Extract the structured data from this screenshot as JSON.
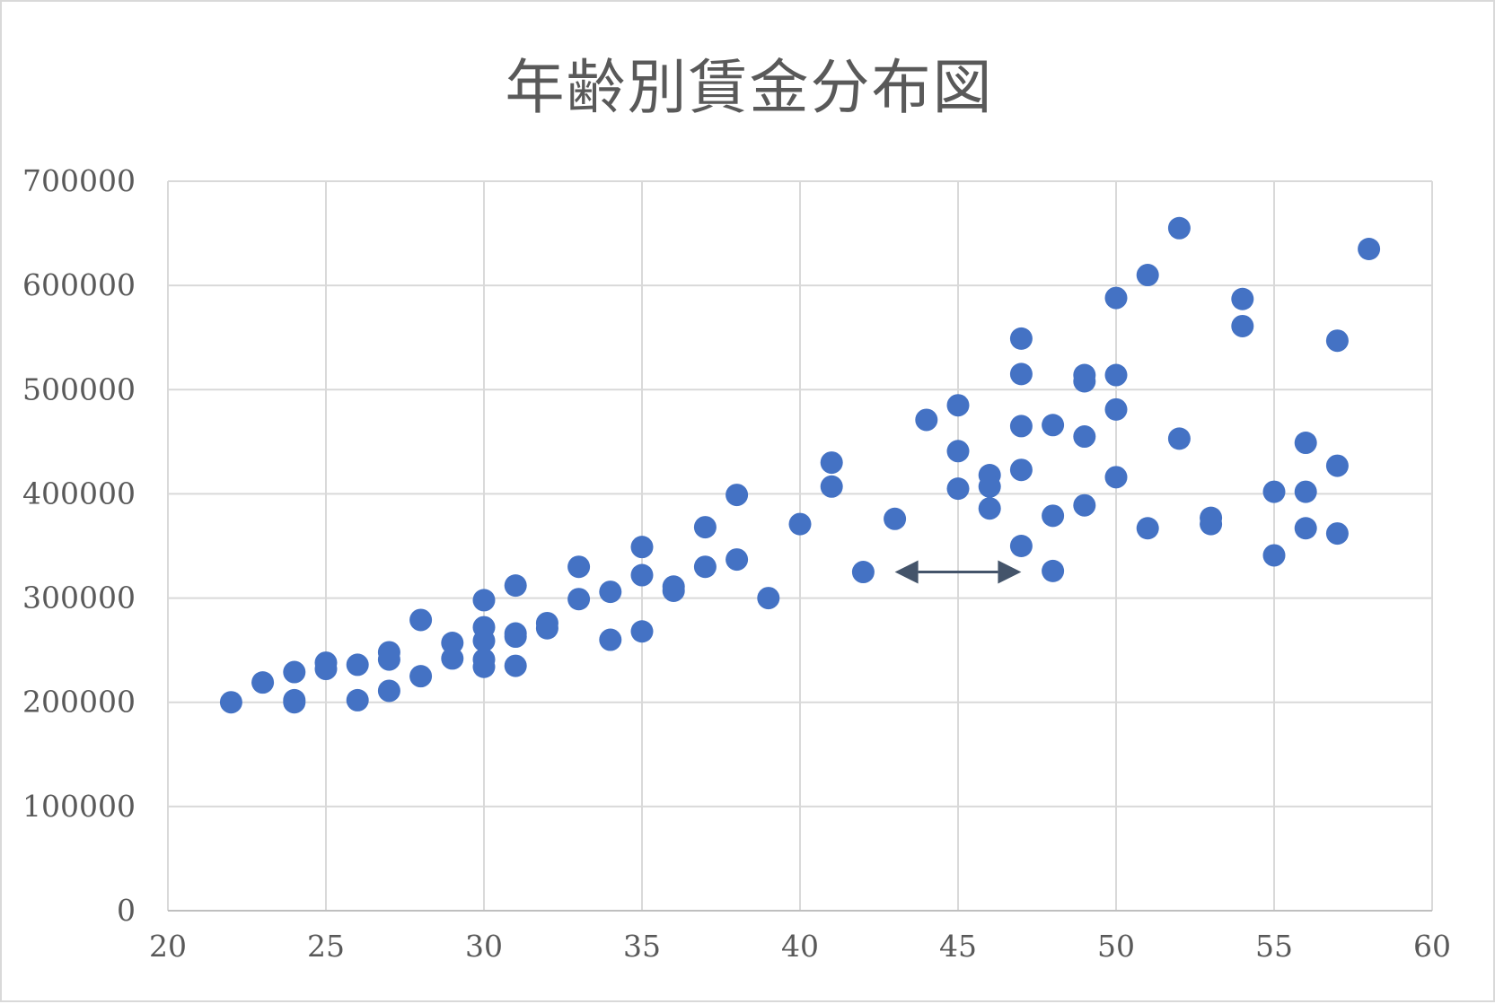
{
  "chart_data": {
    "type": "scatter",
    "title": "年齢別賃金分布図",
    "xlabel": "",
    "ylabel": "",
    "xlim": [
      20,
      60
    ],
    "ylim": [
      0,
      700000
    ],
    "x_ticks": [
      "20",
      "25",
      "30",
      "35",
      "40",
      "45",
      "50",
      "55",
      "60"
    ],
    "y_ticks": [
      "0",
      "100000",
      "200000",
      "300000",
      "400000",
      "500000",
      "600000",
      "700000"
    ],
    "grid": true,
    "legend": "none",
    "marker_color": "#4472c4",
    "series": [
      {
        "points": [
          [
            22,
            200000
          ],
          [
            23,
            219000
          ],
          [
            24,
            229000
          ],
          [
            24,
            202000
          ],
          [
            24,
            200000
          ],
          [
            25,
            238000
          ],
          [
            25,
            232000
          ],
          [
            26,
            236000
          ],
          [
            26,
            202000
          ],
          [
            27,
            248000
          ],
          [
            27,
            241000
          ],
          [
            27,
            211000
          ],
          [
            28,
            279000
          ],
          [
            28,
            225000
          ],
          [
            29,
            257000
          ],
          [
            29,
            242000
          ],
          [
            30,
            298000
          ],
          [
            30,
            272000
          ],
          [
            30,
            259000
          ],
          [
            30,
            241000
          ],
          [
            30,
            234000
          ],
          [
            31,
            312000
          ],
          [
            31,
            266000
          ],
          [
            31,
            263000
          ],
          [
            31,
            235000
          ],
          [
            32,
            276000
          ],
          [
            32,
            271000
          ],
          [
            33,
            330000
          ],
          [
            33,
            299000
          ],
          [
            34,
            306000
          ],
          [
            34,
            260000
          ],
          [
            35,
            349000
          ],
          [
            35,
            322000
          ],
          [
            35,
            268000
          ],
          [
            36,
            311000
          ],
          [
            36,
            307000
          ],
          [
            37,
            368000
          ],
          [
            37,
            330000
          ],
          [
            38,
            399000
          ],
          [
            38,
            337000
          ],
          [
            39,
            300000
          ],
          [
            40,
            371000
          ],
          [
            41,
            430000
          ],
          [
            41,
            407000
          ],
          [
            42,
            325000
          ],
          [
            43,
            376000
          ],
          [
            44,
            471000
          ],
          [
            45,
            485000
          ],
          [
            45,
            441000
          ],
          [
            45,
            405000
          ],
          [
            46,
            418000
          ],
          [
            46,
            407000
          ],
          [
            46,
            386000
          ],
          [
            47,
            549000
          ],
          [
            47,
            515000
          ],
          [
            47,
            465000
          ],
          [
            47,
            423000
          ],
          [
            47,
            350000
          ],
          [
            48,
            466000
          ],
          [
            48,
            379000
          ],
          [
            48,
            326000
          ],
          [
            49,
            514000
          ],
          [
            49,
            508000
          ],
          [
            49,
            455000
          ],
          [
            49,
            389000
          ],
          [
            50,
            588000
          ],
          [
            50,
            514000
          ],
          [
            50,
            481000
          ],
          [
            50,
            416000
          ],
          [
            51,
            610000
          ],
          [
            51,
            367000
          ],
          [
            52,
            655000
          ],
          [
            52,
            453000
          ],
          [
            53,
            377000
          ],
          [
            53,
            371000
          ],
          [
            54,
            587000
          ],
          [
            54,
            561000
          ],
          [
            55,
            402000
          ],
          [
            55,
            341000
          ],
          [
            56,
            449000
          ],
          [
            56,
            402000
          ],
          [
            56,
            367000
          ],
          [
            57,
            547000
          ],
          [
            57,
            427000
          ],
          [
            57,
            362000
          ],
          [
            58,
            635000
          ]
        ]
      }
    ],
    "annotations": [
      {
        "type": "double-arrow",
        "from": [
          43,
          325000
        ],
        "to": [
          47,
          325000
        ],
        "color": "#44546a"
      }
    ]
  }
}
